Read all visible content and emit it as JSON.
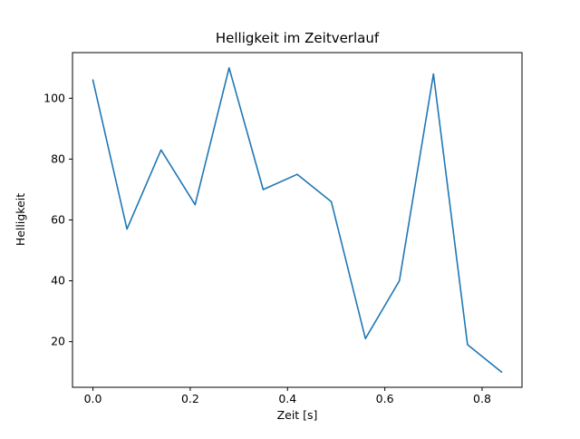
{
  "chart_data": {
    "type": "line",
    "title": "Helligkeit im Zeitverlauf",
    "xlabel": "Zeit [s]",
    "ylabel": "Helligkeit",
    "x": [
      0.0,
      0.07,
      0.14,
      0.21,
      0.28,
      0.35,
      0.42,
      0.49,
      0.56,
      0.63,
      0.7,
      0.77,
      0.84
    ],
    "y": [
      106,
      57,
      83,
      65,
      110,
      70,
      75,
      66,
      21,
      40,
      108,
      19,
      10
    ],
    "xticks": [
      0.0,
      0.2,
      0.4,
      0.6,
      0.8
    ],
    "xtick_labels": [
      "0.0",
      "0.2",
      "0.4",
      "0.6",
      "0.8"
    ],
    "yticks": [
      20,
      40,
      60,
      80,
      100
    ],
    "ytick_labels": [
      "20",
      "40",
      "60",
      "80",
      "100"
    ],
    "xlim": [
      -0.042,
      0.882
    ],
    "ylim": [
      5,
      115
    ],
    "line_color": "#1f77b4",
    "background_color": "#ffffff",
    "grid": false,
    "legend": false
  }
}
